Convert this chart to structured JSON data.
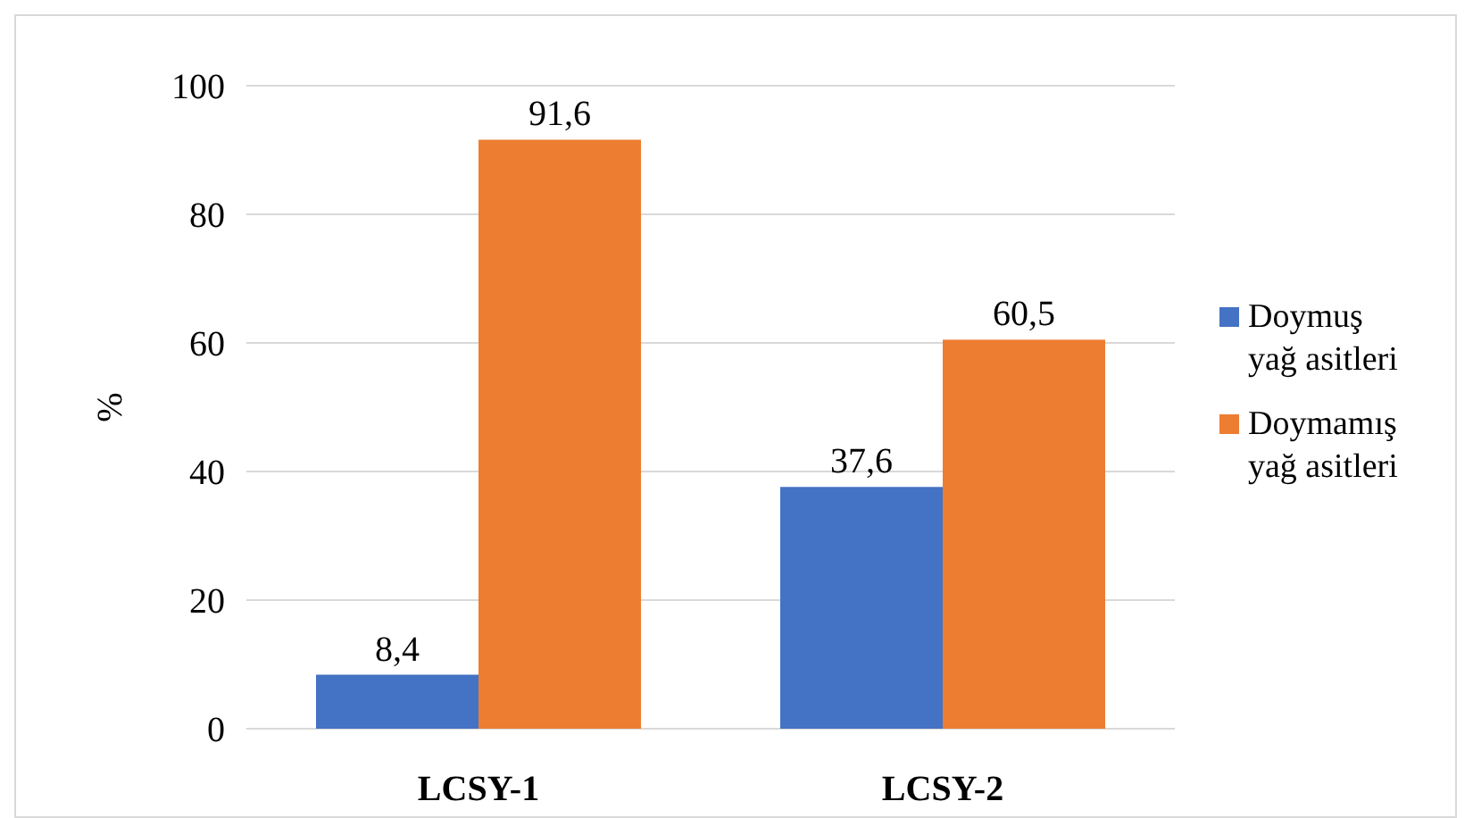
{
  "chart_data": {
    "type": "bar",
    "ylabel": "%",
    "categories": [
      "LCSY-1",
      "LCSY-2"
    ],
    "series": [
      {
        "name": "Doymuş yağ asitleri",
        "color": "#4472c4",
        "values": [
          8.4,
          37.6
        ],
        "value_labels": [
          "8,4",
          "37,6"
        ]
      },
      {
        "name": "Doymamış yağ asitleri",
        "color": "#ed7d31",
        "values": [
          91.6,
          60.5
        ],
        "value_labels": [
          "91,6",
          "60,5"
        ]
      }
    ],
    "ylim": [
      0,
      100
    ],
    "yticks": [
      0,
      20,
      40,
      60,
      80,
      100
    ],
    "grid": "y",
    "legend": "right"
  }
}
